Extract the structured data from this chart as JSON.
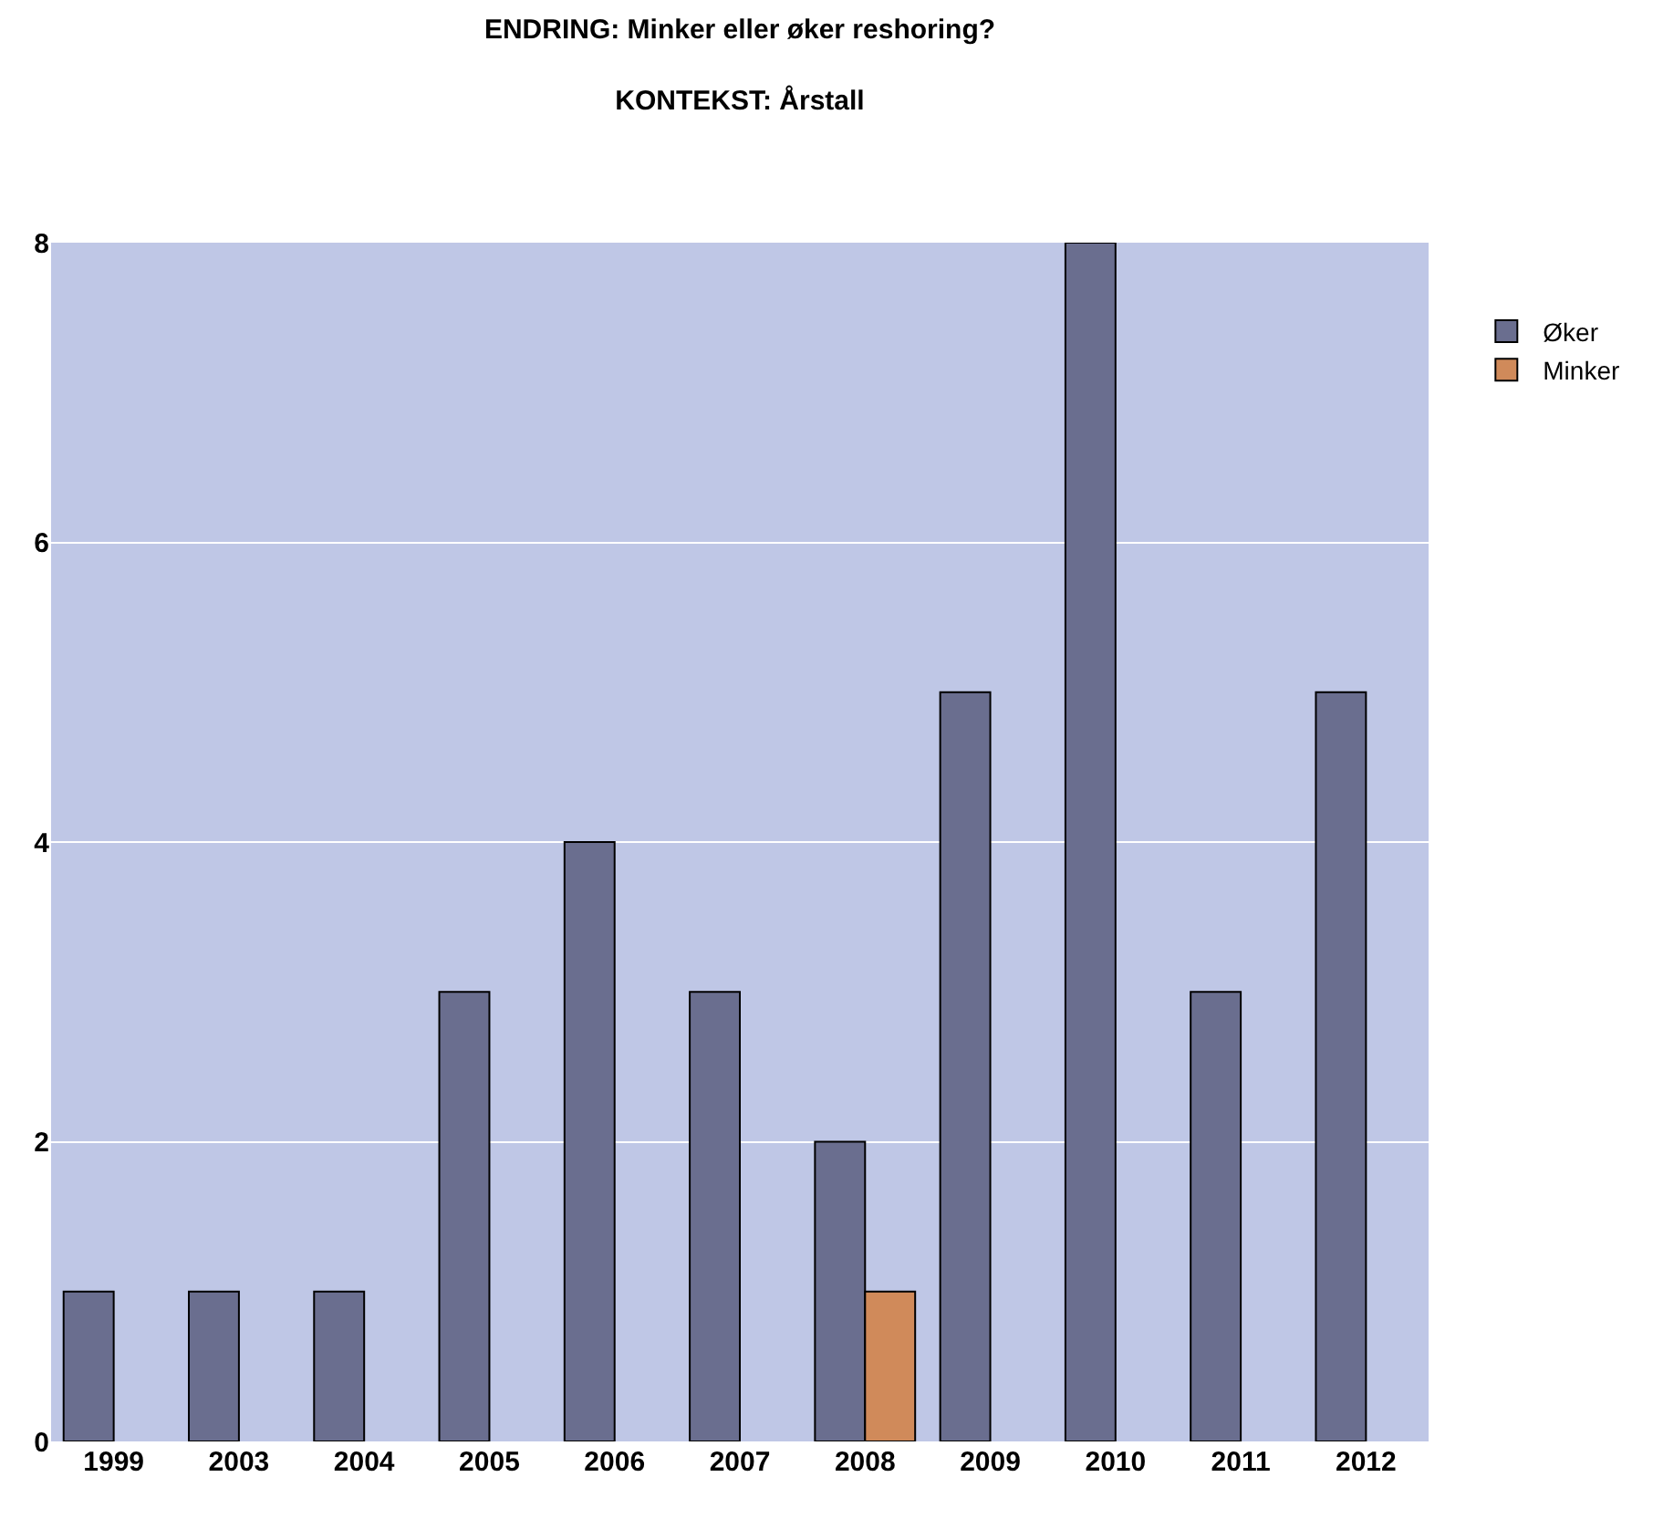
{
  "chart_data": {
    "type": "bar",
    "title": "ENDRING: Minker eller øker reshoring?",
    "subtitle": "KONTEKST: Årstall",
    "categories": [
      "1999",
      "2003",
      "2004",
      "2005",
      "2006",
      "2007",
      "2008",
      "2009",
      "2010",
      "2011",
      "2012"
    ],
    "series": [
      {
        "name": "Øker",
        "color": "#6a6e8f",
        "values": [
          1,
          1,
          1,
          3,
          4,
          3,
          2,
          5,
          8,
          3,
          5
        ]
      },
      {
        "name": "Minker",
        "color": "#d08a5a",
        "values": [
          null,
          null,
          null,
          null,
          null,
          null,
          1,
          null,
          null,
          null,
          null
        ]
      }
    ],
    "ylim": [
      0,
      8
    ],
    "yticks": [
      0,
      2,
      4,
      6,
      8
    ],
    "grid": "y",
    "legend": "top right"
  }
}
